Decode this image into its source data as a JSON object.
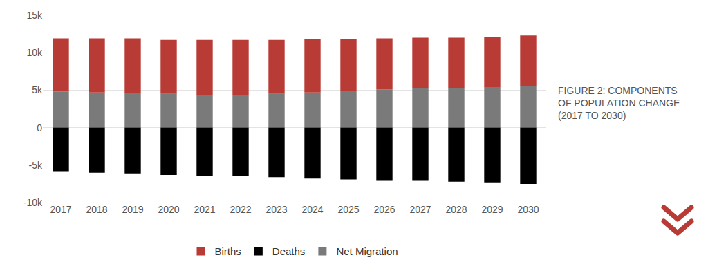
{
  "chart_data": {
    "type": "bar",
    "title": "FIGURE 2: COMPONENTS OF POPULATION CHANGE (2017 TO 2030)",
    "categories": [
      "2017",
      "2018",
      "2019",
      "2020",
      "2021",
      "2022",
      "2023",
      "2024",
      "2025",
      "2026",
      "2027",
      "2028",
      "2029",
      "2030"
    ],
    "series": [
      {
        "name": "Births",
        "color": "#b83b35",
        "values": [
          7100,
          7200,
          7300,
          7200,
          7350,
          7350,
          7200,
          7100,
          6900,
          6800,
          6700,
          6700,
          6700,
          6800
        ]
      },
      {
        "name": "Deaths",
        "color": "#000000",
        "values": [
          -5900,
          -6000,
          -6100,
          -6300,
          -6400,
          -6500,
          -6600,
          -6800,
          -6900,
          -7100,
          -7100,
          -7200,
          -7300,
          -7500
        ]
      },
      {
        "name": "Net Migration",
        "color": "#7a7a7a",
        "values": [
          4800,
          4700,
          4600,
          4500,
          4350,
          4350,
          4500,
          4700,
          4900,
          5100,
          5300,
          5300,
          5400,
          5500
        ]
      }
    ],
    "stacked": true,
    "ylim": [
      -10000,
      15000
    ],
    "yticks": [
      {
        "value": -10000,
        "label": "-10k"
      },
      {
        "value": -5000,
        "label": "-5k"
      },
      0,
      {
        "value": 5000,
        "label": "5k"
      },
      {
        "value": 10000,
        "label": "10k"
      },
      {
        "value": 15000,
        "label": "15k"
      }
    ],
    "grid": true,
    "legend": "bottom"
  }
}
